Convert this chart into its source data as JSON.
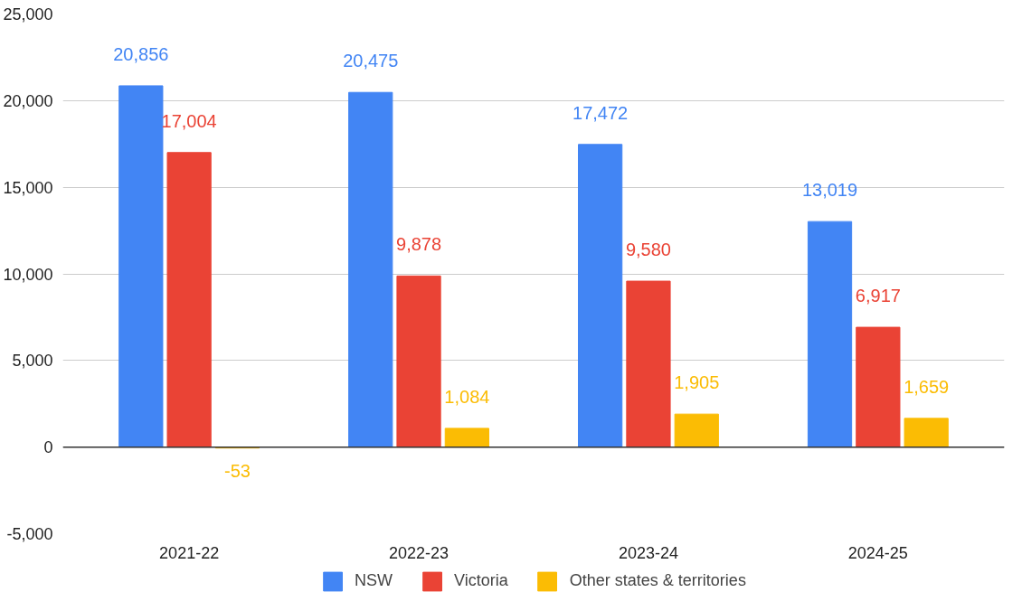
{
  "chart_data": {
    "type": "bar",
    "categories": [
      "2021-22",
      "2022-23",
      "2023-24",
      "2024-25"
    ],
    "series": [
      {
        "name": "NSW",
        "color": "#4285f4",
        "values": [
          20856,
          20475,
          17472,
          13019
        ],
        "value_labels": [
          "20,856",
          "20,475",
          "17,472",
          "13,019"
        ]
      },
      {
        "name": "Victoria",
        "color": "#ea4335",
        "values": [
          17004,
          9878,
          9580,
          6917
        ],
        "value_labels": [
          "17,004",
          "9,878",
          "9,580",
          "6,917"
        ]
      },
      {
        "name": "Other states & territories",
        "color": "#fbbc04",
        "values": [
          -53,
          1084,
          1905,
          1659
        ],
        "value_labels": [
          "-53",
          "1,084",
          "1,905",
          "1,659"
        ]
      }
    ],
    "ylim": [
      -5000,
      25000
    ],
    "yticks": [
      {
        "value": -5000,
        "label": "-5,000"
      },
      0,
      {
        "value": 5000,
        "label": "5,000"
      },
      {
        "value": 10000,
        "label": "10,000"
      },
      {
        "value": 15000,
        "label": "15,000"
      },
      {
        "value": 20000,
        "label": "20,000"
      },
      {
        "value": 25000,
        "label": "25,000"
      }
    ],
    "grid": "y",
    "legend": "bottom"
  }
}
